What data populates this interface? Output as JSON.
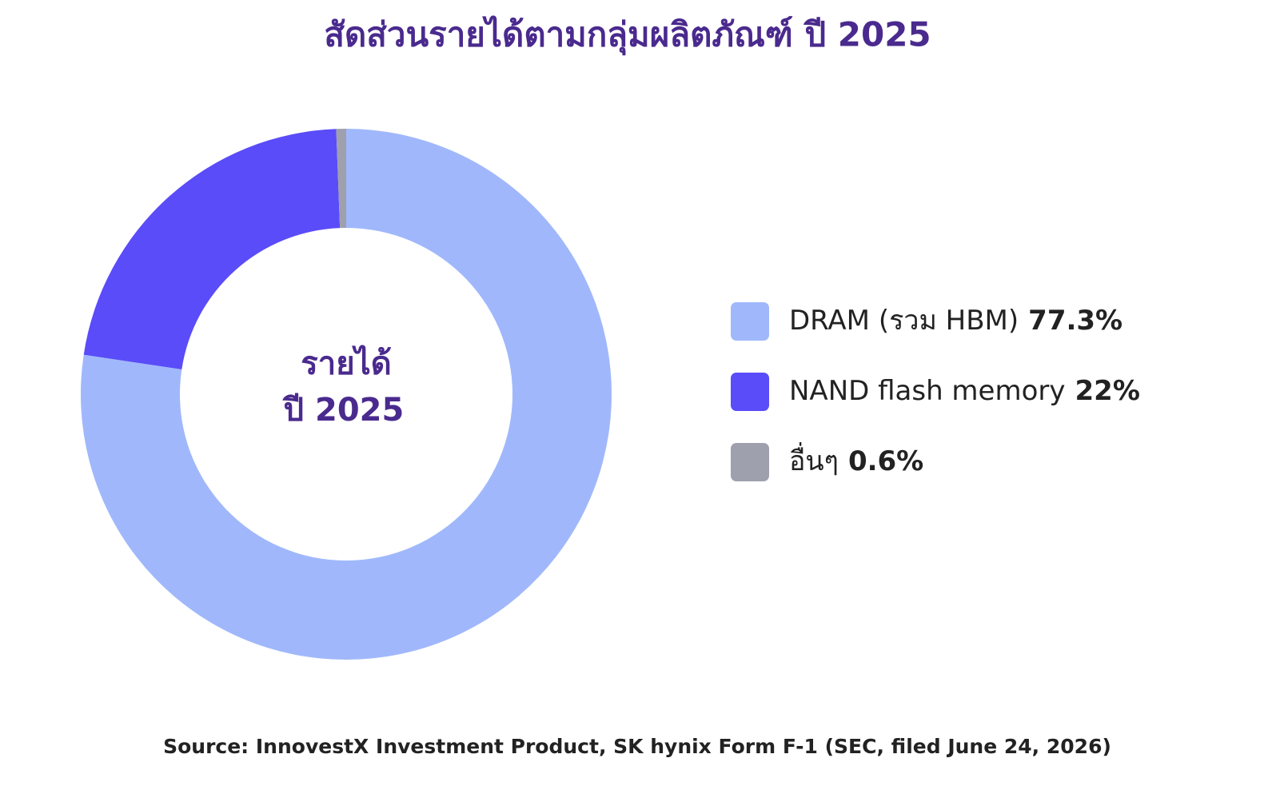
{
  "chart_data": {
    "type": "donut",
    "title": "สัดส่วนรายได้ตามกลุ่มผลิตภัณฑ์ ปี 2025",
    "center_text": [
      "รายได้",
      "ปี 2025"
    ],
    "categories": [
      "DRAM (รวม HBM)",
      "NAND flash memory",
      "อื่นๆ"
    ],
    "values": [
      77.3,
      22,
      0.6
    ],
    "value_labels": [
      "77.3%",
      "22%",
      "0.6%"
    ],
    "colors": [
      "#a0b8fb",
      "#5a4cf8",
      "#9fa0ad"
    ],
    "legend": "right",
    "source": "Source: InnovestX Investment Product, SK hynix Form F-1 (SEC, filed June 24, 2026)"
  }
}
